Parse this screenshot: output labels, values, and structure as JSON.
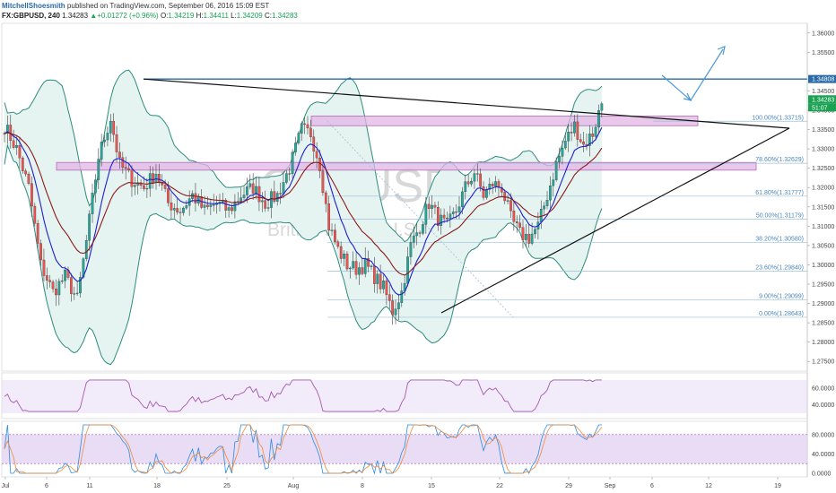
{
  "header": {
    "author": "MitchellShoesmith",
    "published": "published on TradingView.com, September 06, 2016 15:09 EST",
    "symbol": "FX:GBPUSD, 240",
    "price": "1.34283",
    "change": "+0.01272 (+0.96%)",
    "ohlc": {
      "o_label": "O:",
      "o": "1.34219",
      "h_label": "H:",
      "h": "1.34411",
      "l_label": "L:",
      "l": "1.34209",
      "c_label": "C:",
      "c": "1.34283"
    }
  },
  "watermark": {
    "symbol": "GBPUSD, 240",
    "name": "British Pound/U.S. Dollar"
  },
  "price_axis": {
    "ticks": [
      "1.36000",
      "1.35500",
      "1.34500",
      "1.34000",
      "1.33500",
      "1.33000",
      "1.32500",
      "1.32000",
      "1.31500",
      "1.31000",
      "1.30500",
      "1.30000",
      "1.29500",
      "1.29000",
      "1.28500",
      "1.28000",
      "1.27500"
    ],
    "badges": [
      {
        "label": "1.34808",
        "color": "#2a6aa8"
      },
      {
        "label": "1.34283",
        "color": "#1aa152"
      },
      {
        "label": "51:07",
        "color": "#1aa152"
      }
    ]
  },
  "rsi_axis": {
    "ticks": [
      "60.0000",
      "40.0000"
    ]
  },
  "stoch_axis": {
    "ticks": [
      "80.0000",
      "40.0000",
      "0.0000"
    ]
  },
  "time_axis": {
    "labels": [
      "Jul",
      "6",
      "11",
      "18",
      "25",
      "Aug",
      "8",
      "15",
      "22",
      "29",
      "Sep",
      "6",
      "12",
      "19"
    ]
  },
  "fib_levels": [
    {
      "label": "100.00%(1.33715)",
      "price": 1.33715
    },
    {
      "label": "78.60%(1.32629)",
      "price": 1.32629
    },
    {
      "label": "61.80%(1.31777)",
      "price": 1.31777
    },
    {
      "label": "50.00%(1.31179)",
      "price": 1.31179
    },
    {
      "label": "38.20%(1.30580)",
      "price": 1.3058
    },
    {
      "label": "23.60%(1.29840)",
      "price": 1.2984
    },
    {
      "label": "9.00%(1.29099)",
      "price": 1.29099
    },
    {
      "label": "0.00%(1.28643)",
      "price": 1.28643
    }
  ],
  "colors": {
    "bull": "#26a69a",
    "bear": "#ef5350",
    "bb": "#2e8b7d",
    "bb_fill": "#e6f4f1",
    "ema_fast": "#1f1fd0",
    "ema_slow": "#8b1a1a",
    "zone": "#e3b6e6",
    "zone_edge": "#b36ab8",
    "osc_band": "#e3d3f2",
    "rsi": "#a45ab0",
    "stoch_k": "#2b8de0",
    "stoch_d": "#f08a3a",
    "resistance": "#2a6aa8",
    "arrow": "#4a98d6"
  },
  "chart_data": {
    "type": "candlestick",
    "symbol": "FX:GBPUSD",
    "interval": "240",
    "title": "GBPUSD, 240",
    "ylim": [
      1.2725,
      1.3625
    ],
    "horizontal_resistance": 1.34808,
    "path_points": [
      {
        "i": 0,
        "p": 1.336
      },
      {
        "i": 4,
        "p": 1.33
      },
      {
        "i": 8,
        "p": 1.32
      },
      {
        "i": 12,
        "p": 1.3
      },
      {
        "i": 16,
        "p": 1.293
      },
      {
        "i": 20,
        "p": 1.297
      },
      {
        "i": 24,
        "p": 1.291
      },
      {
        "i": 27,
        "p": 1.306
      },
      {
        "i": 31,
        "p": 1.328
      },
      {
        "i": 35,
        "p": 1.338
      },
      {
        "i": 38,
        "p": 1.326
      },
      {
        "i": 42,
        "p": 1.322
      },
      {
        "i": 46,
        "p": 1.32
      },
      {
        "i": 50,
        "p": 1.324
      },
      {
        "i": 54,
        "p": 1.316
      },
      {
        "i": 58,
        "p": 1.314
      },
      {
        "i": 62,
        "p": 1.318
      },
      {
        "i": 66,
        "p": 1.314
      },
      {
        "i": 70,
        "p": 1.316
      },
      {
        "i": 74,
        "p": 1.314
      },
      {
        "i": 78,
        "p": 1.318
      },
      {
        "i": 82,
        "p": 1.32
      },
      {
        "i": 86,
        "p": 1.316
      },
      {
        "i": 90,
        "p": 1.318
      },
      {
        "i": 94,
        "p": 1.325
      },
      {
        "i": 98,
        "p": 1.335
      },
      {
        "i": 101,
        "p": 1.334
      },
      {
        "i": 104,
        "p": 1.326
      },
      {
        "i": 107,
        "p": 1.31
      },
      {
        "i": 110,
        "p": 1.304
      },
      {
        "i": 113,
        "p": 1.3
      },
      {
        "i": 116,
        "p": 1.299
      },
      {
        "i": 119,
        "p": 1.3
      },
      {
        "i": 122,
        "p": 1.297
      },
      {
        "i": 125,
        "p": 1.294
      },
      {
        "i": 128,
        "p": 1.288
      },
      {
        "i": 131,
        "p": 1.293
      },
      {
        "i": 134,
        "p": 1.305
      },
      {
        "i": 137,
        "p": 1.31
      },
      {
        "i": 140,
        "p": 1.316
      },
      {
        "i": 143,
        "p": 1.312
      },
      {
        "i": 146,
        "p": 1.31
      },
      {
        "i": 149,
        "p": 1.314
      },
      {
        "i": 152,
        "p": 1.32
      },
      {
        "i": 155,
        "p": 1.324
      },
      {
        "i": 158,
        "p": 1.318
      },
      {
        "i": 161,
        "p": 1.321
      },
      {
        "i": 164,
        "p": 1.32
      },
      {
        "i": 167,
        "p": 1.312
      },
      {
        "i": 170,
        "p": 1.308
      },
      {
        "i": 173,
        "p": 1.307
      },
      {
        "i": 176,
        "p": 1.31
      },
      {
        "i": 179,
        "p": 1.318
      },
      {
        "i": 182,
        "p": 1.326
      },
      {
        "i": 185,
        "p": 1.332
      },
      {
        "i": 188,
        "p": 1.336
      },
      {
        "i": 191,
        "p": 1.331
      },
      {
        "i": 194,
        "p": 1.334
      },
      {
        "i": 197,
        "p": 1.342
      }
    ],
    "bars_total": 198
  }
}
